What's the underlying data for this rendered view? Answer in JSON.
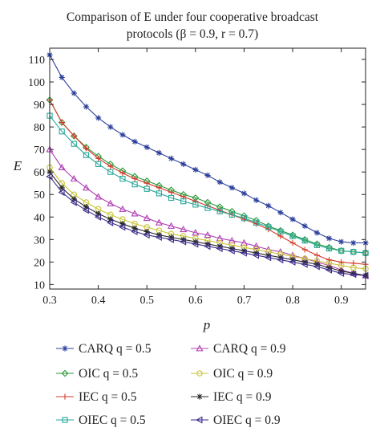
{
  "chart_data": {
    "type": "line",
    "title_line1": "Comparison of E under four cooperative broadcast",
    "title_line2": "protocols (β = 0.9, r = 0.7)",
    "xlabel": "p",
    "ylabel": "E",
    "xlim": [
      0.3,
      0.95
    ],
    "ylim": [
      8,
      115
    ],
    "xticks": [
      0.3,
      0.4,
      0.5,
      0.6,
      0.7,
      0.8,
      0.9
    ],
    "xtick_labels": [
      "0.3",
      "0.4",
      "0.5",
      "0.6",
      "0.7",
      "0.8",
      "0.9"
    ],
    "yticks": [
      10,
      20,
      30,
      40,
      50,
      60,
      70,
      80,
      90,
      100,
      110
    ],
    "ytick_labels": [
      "10",
      "20",
      "30",
      "40",
      "50",
      "60",
      "70",
      "80",
      "90",
      "100",
      "110"
    ],
    "grid": false,
    "legend_position": "below",
    "x": [
      0.3,
      0.325,
      0.35,
      0.375,
      0.4,
      0.425,
      0.45,
      0.475,
      0.5,
      0.525,
      0.55,
      0.575,
      0.6,
      0.625,
      0.65,
      0.675,
      0.7,
      0.725,
      0.75,
      0.775,
      0.8,
      0.825,
      0.85,
      0.875,
      0.9,
      0.925,
      0.95
    ],
    "series": [
      {
        "name": "CARQ q = 0.5",
        "color": "#2b3f9b",
        "marker": "asterisk",
        "values": [
          112,
          102,
          95,
          89,
          84,
          80,
          76.5,
          73.5,
          71,
          68.5,
          66,
          63.5,
          61,
          58.5,
          55.5,
          53,
          50.5,
          47.5,
          45,
          42,
          39,
          36,
          33,
          30.5,
          29,
          28.5,
          28.5
        ]
      },
      {
        "name": "CARQ q = 0.9",
        "color": "#b03fb5",
        "marker": "triangle-up",
        "values": [
          70,
          62,
          57,
          53,
          49,
          46,
          43.5,
          41.5,
          39.5,
          37.5,
          36,
          34.5,
          33,
          32,
          30.5,
          29.5,
          28.5,
          27,
          25.5,
          24.5,
          23,
          21.5,
          20,
          18.5,
          16.5,
          15,
          14
        ]
      },
      {
        "name": "OIC q = 0.5",
        "color": "#2a9a3a",
        "marker": "diamond",
        "values": [
          92,
          82,
          76,
          71,
          67,
          63.5,
          60.5,
          58,
          56,
          54,
          52,
          50,
          48.5,
          46.5,
          44.5,
          42.5,
          40.5,
          38.5,
          36,
          34,
          32,
          30,
          28,
          26.5,
          25,
          24.5,
          24
        ]
      },
      {
        "name": "OIC q = 0.9",
        "color": "#c9c43a",
        "marker": "circle",
        "values": [
          62,
          55,
          50,
          46.5,
          43.5,
          41,
          39,
          37,
          35.5,
          34,
          32.5,
          31.5,
          30.5,
          29.5,
          28.5,
          27.5,
          26.5,
          25.5,
          24.5,
          23.5,
          22.5,
          21.5,
          20.5,
          19.5,
          18.5,
          17.5,
          17
        ]
      },
      {
        "name": "IEC q = 0.5",
        "color": "#d63a2a",
        "marker": "plus",
        "values": [
          92,
          82,
          76,
          70.5,
          66,
          62.5,
          59.5,
          57,
          55,
          53,
          51,
          49,
          47,
          45,
          43,
          41,
          39,
          37,
          34.5,
          31.5,
          28.5,
          25.5,
          23,
          21,
          20,
          19.5,
          19
        ]
      },
      {
        "name": "IEC q = 0.9",
        "color": "#2a2a2a",
        "marker": "asterisk",
        "values": [
          60,
          53,
          48,
          44.5,
          41.5,
          39,
          37,
          35,
          33.5,
          32,
          31,
          30,
          29,
          28,
          27,
          26,
          25,
          24,
          23,
          22,
          21,
          20,
          19,
          17.5,
          16,
          15,
          14
        ]
      },
      {
        "name": "OIEC q = 0.5",
        "color": "#2aa89a",
        "marker": "square",
        "values": [
          85,
          78,
          72.5,
          67.5,
          63.5,
          60,
          57,
          54.5,
          52.5,
          50.5,
          48.5,
          47,
          45.5,
          44,
          42.5,
          41,
          39.5,
          37.5,
          35.5,
          33.5,
          31.5,
          29.5,
          27.5,
          26,
          25,
          24.5,
          24
        ]
      },
      {
        "name": "OIEC q = 0.9",
        "color": "#3a2a8a",
        "marker": "triangle-left",
        "values": [
          58,
          51,
          46.5,
          43,
          40,
          37.5,
          35.5,
          33.5,
          32,
          31,
          30,
          29,
          28,
          27,
          26,
          25,
          24,
          23,
          22,
          21,
          20,
          19,
          18,
          16.5,
          15,
          14.5,
          14
        ]
      }
    ],
    "legend_order": [
      0,
      1,
      2,
      3,
      4,
      5,
      6,
      7
    ]
  }
}
